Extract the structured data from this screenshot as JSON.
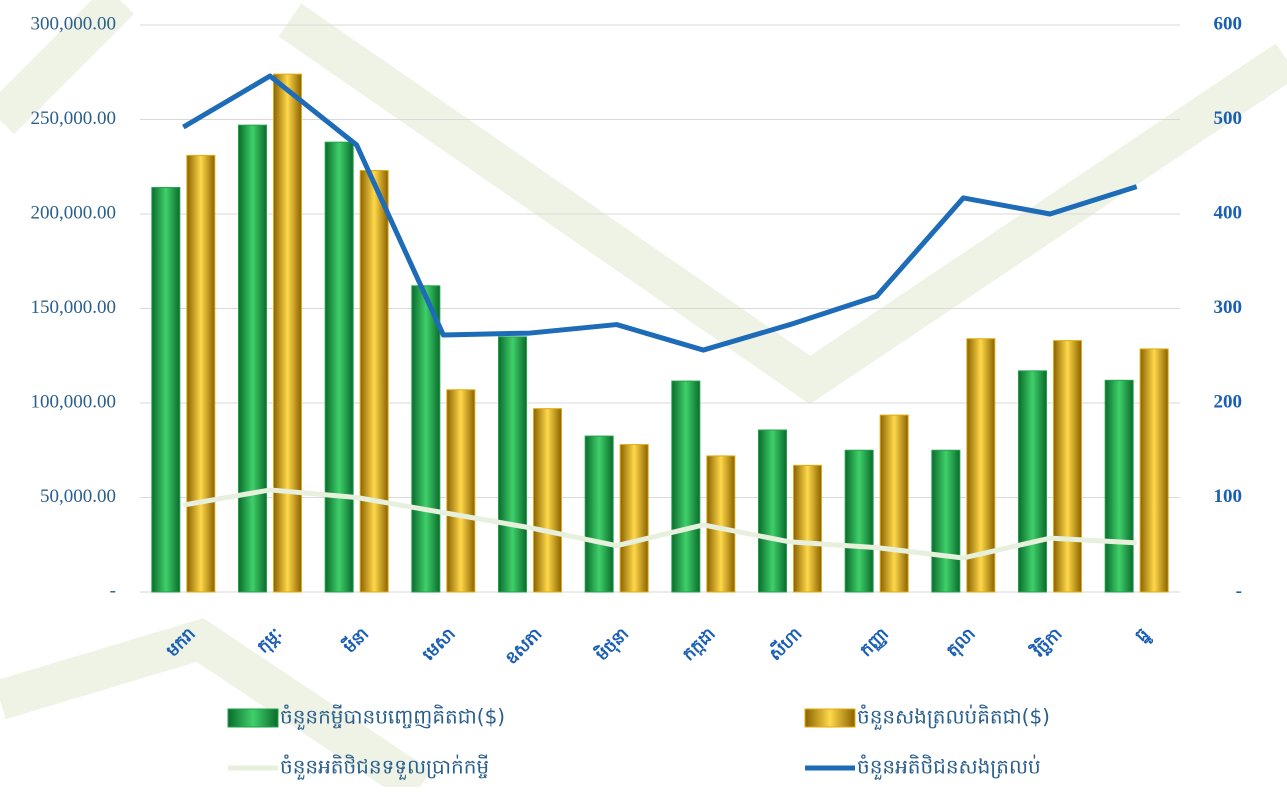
{
  "chart_data": {
    "type": "bar",
    "categories": [
      "មករា",
      "កុម្ភៈ",
      "មីនា",
      "មេសា",
      "ឧសភា",
      "មិថុនា",
      "កក្កដា",
      "សីហា",
      "កញ្ញា",
      "តុលា",
      "វិច្ឆិកា",
      "ធ្នូ"
    ],
    "series": [
      {
        "name": "ចំនួនកម្ចីបានបញ្ចេញគិតជា($)",
        "color": "#1fa34a",
        "type": "bar",
        "values": [
          214000,
          247000,
          238000,
          162000,
          135000,
          82500,
          111600,
          85700,
          75000,
          75000,
          117000,
          112000
        ]
      },
      {
        "name": "ចំនួនសងត្រលប់គិតជា($)",
        "color": "#e0aa10",
        "type": "bar",
        "values": [
          231000,
          274000,
          223000,
          107000,
          97000,
          78000,
          72000,
          67000,
          93600,
          134000,
          133000,
          128600
        ]
      },
      {
        "name": "ចំនួនអតិថិជនទទួលប្រាក់កម្ចី",
        "color": "#e6f0dc",
        "type": "line",
        "axis": "y2",
        "values": [
          92,
          108,
          100,
          84,
          68,
          49,
          71,
          53,
          47,
          36,
          57,
          52
        ]
      },
      {
        "name": "ចំនួនអតិថិជនសងត្រលប់",
        "color": "#1e6bb8",
        "type": "line",
        "axis": "y2",
        "values": [
          492,
          546,
          473,
          272,
          274,
          283,
          256,
          283,
          313,
          417,
          400,
          429
        ]
      }
    ],
    "ylim": [
      0,
      300000
    ],
    "yticks": [
      {
        "value": 0,
        "label": "-"
      },
      {
        "value": 50000,
        "label": "50,000.00"
      },
      {
        "value": 100000,
        "label": "100,000.00"
      },
      {
        "value": 150000,
        "label": "150,000.00"
      },
      {
        "value": 200000,
        "label": "200,000.00"
      },
      {
        "value": 250000,
        "label": "250,000.00"
      },
      {
        "value": 300000,
        "label": "300,000.00"
      }
    ],
    "y2lim": [
      0,
      600
    ],
    "y2ticks": [
      {
        "value": 0,
        "label": "-"
      },
      100,
      200,
      300,
      400,
      500,
      600
    ],
    "grid": true
  }
}
